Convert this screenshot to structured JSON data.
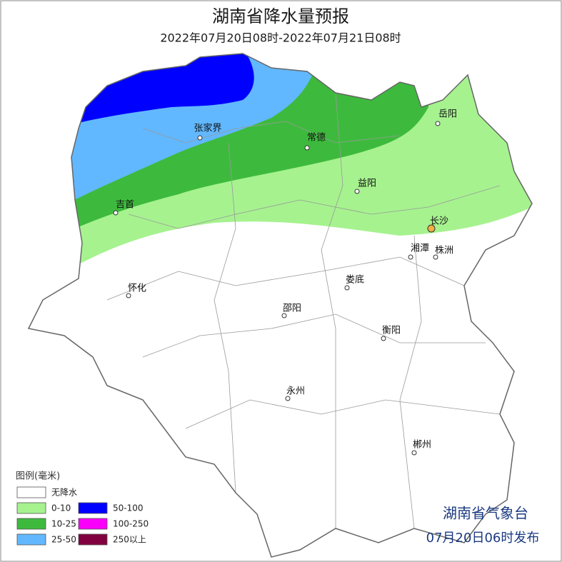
{
  "header": {
    "title": "湖南省降水量预报",
    "subtitle": "2022年07月20日08时-2022年07月21日08时"
  },
  "cities": [
    {
      "name": "岳阳"
    },
    {
      "name": "张家界"
    },
    {
      "name": "常德"
    },
    {
      "name": "益阳"
    },
    {
      "name": "吉首"
    },
    {
      "name": "长沙"
    },
    {
      "name": "湘潭"
    },
    {
      "name": "株洲"
    },
    {
      "name": "怀化"
    },
    {
      "name": "娄底"
    },
    {
      "name": "邵阳"
    },
    {
      "name": "衡阳"
    },
    {
      "name": "永州"
    },
    {
      "name": "郴州"
    }
  ],
  "legend": {
    "title": "图例(毫米)",
    "items": [
      {
        "label": "无降水",
        "color": "#ffffff"
      },
      {
        "label": "0-10",
        "color": "#a6f28f"
      },
      {
        "label": "10-25",
        "color": "#3dba3d"
      },
      {
        "label": "25-50",
        "color": "#61b8ff"
      },
      {
        "label": "50-100",
        "color": "#0000ff"
      },
      {
        "label": "100-250",
        "color": "#fa00fa"
      },
      {
        "label": "250以上",
        "color": "#800040"
      }
    ]
  },
  "footer": {
    "issuer": "湖南省气象台",
    "issued": "07月20日06时发布"
  }
}
